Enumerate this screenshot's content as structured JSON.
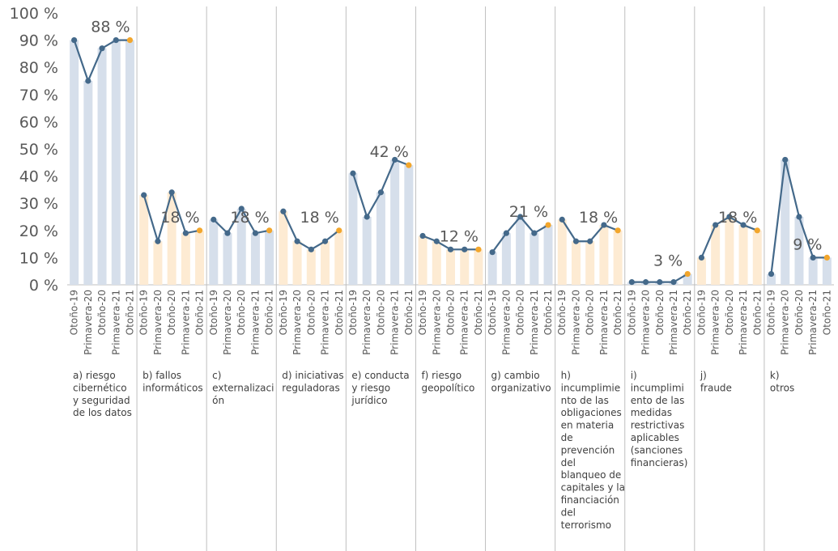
{
  "chart_data": {
    "type": "bar",
    "ylim": [
      0,
      100
    ],
    "yticks": [
      "0 %",
      "10 %",
      "20 %",
      "30 %",
      "40 %",
      "50 %",
      "60 %",
      "70 %",
      "80 %",
      "90 %",
      "100 %"
    ],
    "periods": [
      "Otoño-19",
      "Primavera-20",
      "Otoño-20",
      "Primavera-21",
      "Otoño-21"
    ],
    "colors": {
      "bar_blue": "#d6dfeb",
      "bar_orange": "#fdebd3",
      "line": "#44698a",
      "marker": "#44698a",
      "marker_last": "#f2a62c",
      "separator": "#bfbfbf"
    },
    "groups": [
      {
        "label": [
          "a) riesgo",
          "cibernético",
          "y seguridad",
          "de los datos"
        ],
        "values": [
          90,
          75,
          87,
          90,
          90
        ],
        "bar_color": "blue",
        "data_label": "88 %"
      },
      {
        "label": [
          "b) fallos",
          "informáticos"
        ],
        "values": [
          33,
          16,
          34,
          19,
          20
        ],
        "bar_color": "orange",
        "data_label": "18 %"
      },
      {
        "label": [
          "c)",
          "externalizaci",
          "ón"
        ],
        "values": [
          24,
          19,
          28,
          19,
          20
        ],
        "bar_color": "blue",
        "data_label": "18 %"
      },
      {
        "label": [
          "d) iniciativas",
          "reguladoras"
        ],
        "values": [
          27,
          16,
          13,
          16,
          20
        ],
        "bar_color": "orange",
        "data_label": "18 %"
      },
      {
        "label": [
          "e) conducta",
          "y riesgo",
          "jurídico"
        ],
        "values": [
          41,
          25,
          34,
          46,
          44
        ],
        "bar_color": "blue",
        "data_label": "42 %"
      },
      {
        "label": [
          "f) riesgo",
          "geopolítico"
        ],
        "values": [
          18,
          16,
          13,
          13,
          13
        ],
        "bar_color": "orange",
        "data_label": "12 %"
      },
      {
        "label": [
          "g) cambio",
          "organizativo"
        ],
        "values": [
          12,
          19,
          25,
          19,
          22
        ],
        "bar_color": "blue",
        "data_label": "21 %"
      },
      {
        "label": [
          "h)",
          "incumplimie",
          "nto de las",
          "obligaciones",
          "en materia",
          "de",
          "prevención",
          "del",
          "blanqueo de",
          "capitales y la",
          "financiación",
          "del",
          "terrorismo"
        ],
        "values": [
          24,
          16,
          16,
          22,
          20
        ],
        "bar_color": "orange",
        "data_label": "18 %"
      },
      {
        "label": [
          "i)",
          "incumplimi",
          "ento de las",
          "medidas",
          "restrictivas",
          "aplicables",
          "(sanciones",
          "financieras)"
        ],
        "values": [
          1,
          1,
          1,
          1,
          4
        ],
        "bar_color": "blue",
        "data_label": "3 %"
      },
      {
        "label": [
          "j)",
          "fraude"
        ],
        "values": [
          10,
          22,
          25,
          22,
          20
        ],
        "bar_color": "orange",
        "data_label": "18 %"
      },
      {
        "label": [
          "k)",
          "otros"
        ],
        "values": [
          4,
          46,
          25,
          10,
          10
        ],
        "bar_color": "blue",
        "data_label": "9 %"
      }
    ]
  }
}
